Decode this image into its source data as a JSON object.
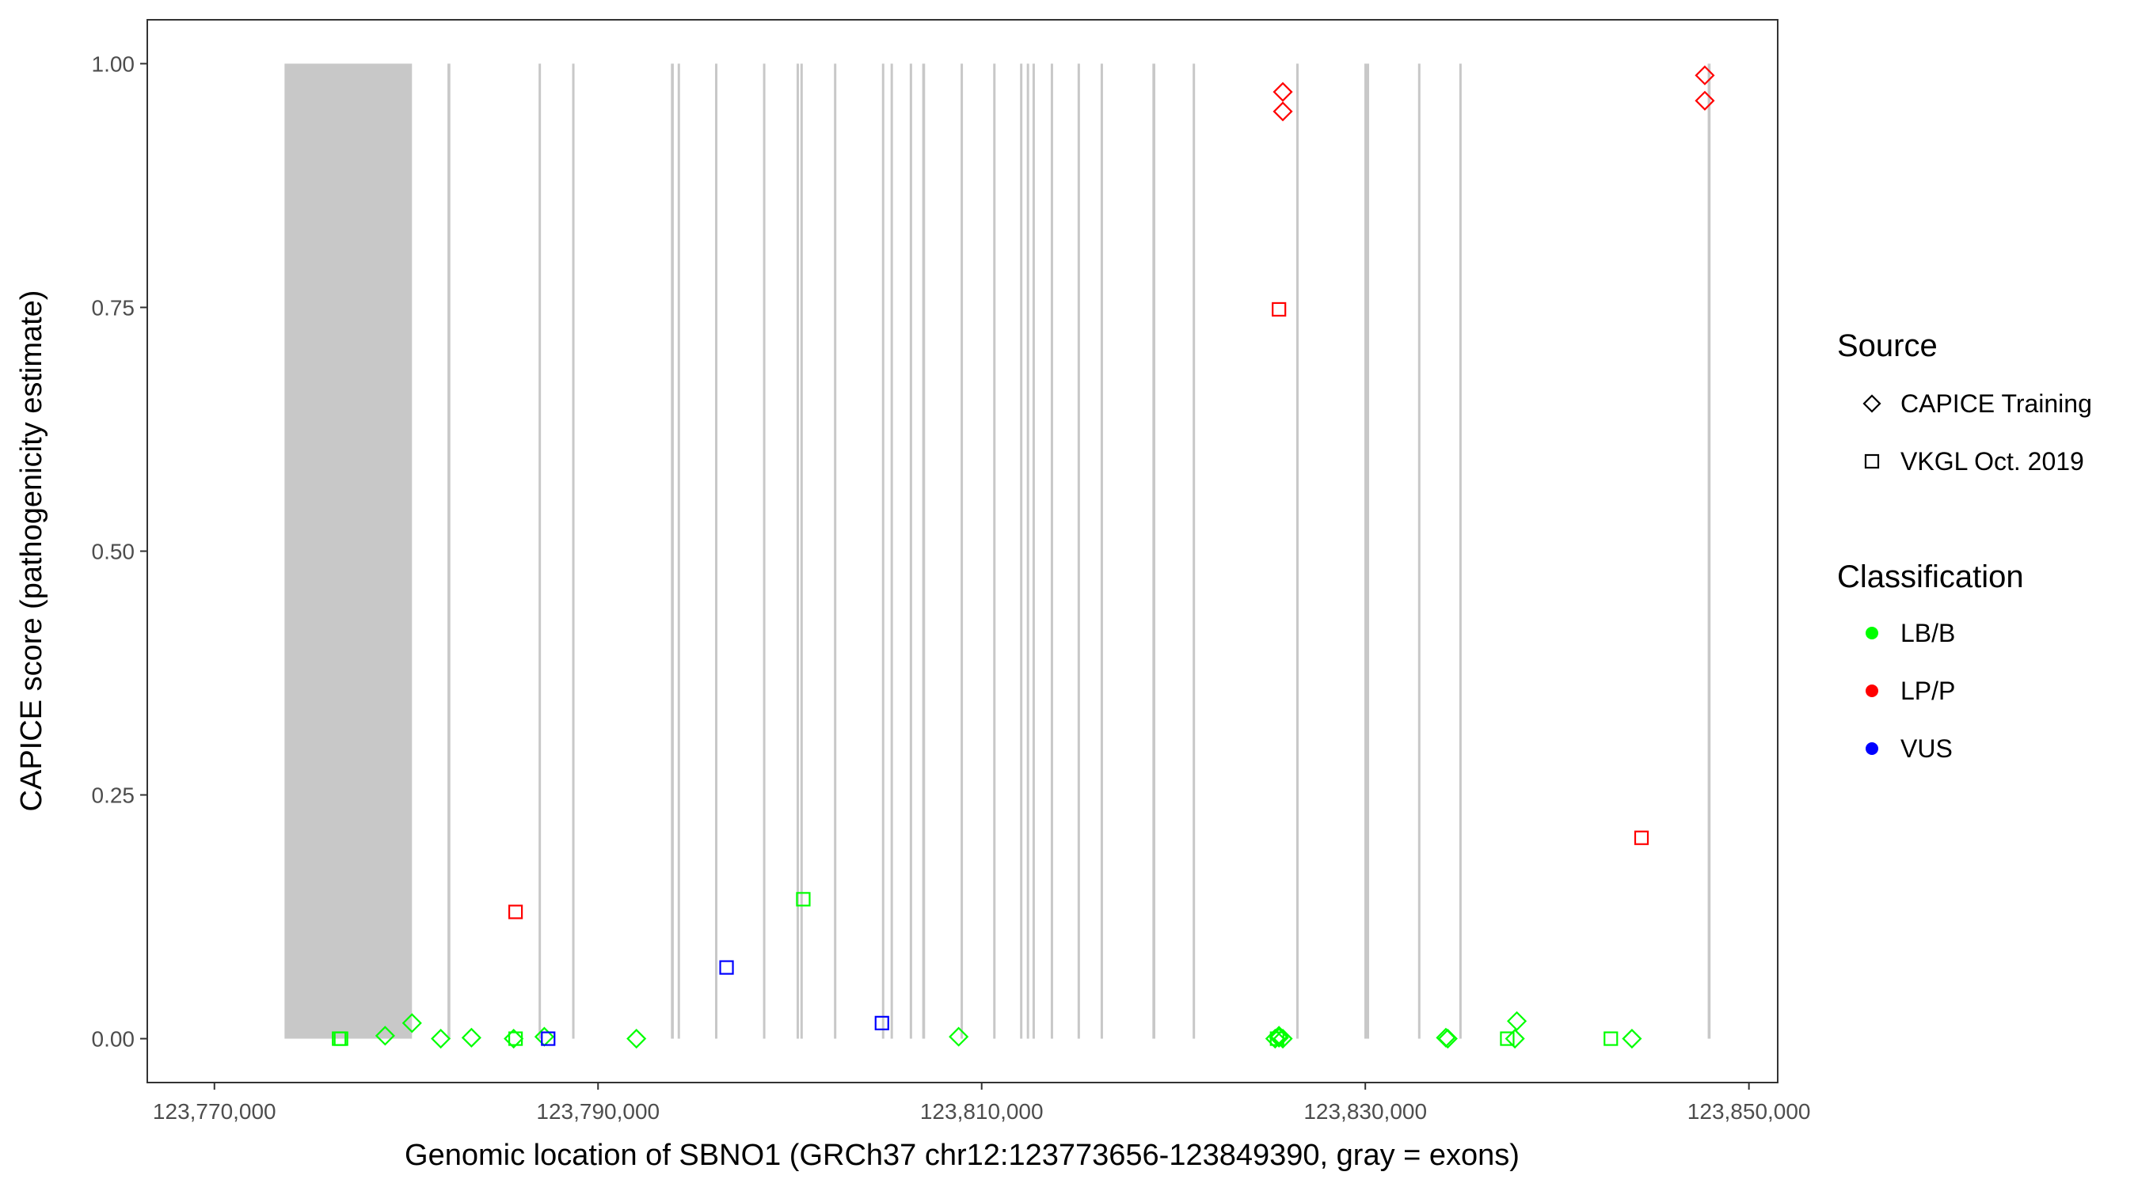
{
  "chart_data": {
    "type": "scatter",
    "xlabel": "Genomic location of SBNO1 (GRCh37 chr12:123773656-123849390, gray = exons)",
    "ylabel": "CAPICE score (pathogenicity estimate)",
    "xlim": [
      123766500,
      123851500
    ],
    "ylim": [
      -0.045,
      1.045
    ],
    "x_ticks": [
      123770000,
      123790000,
      123810000,
      123830000,
      123850000
    ],
    "x_tick_labels": [
      "123,770,000",
      "123,790,000",
      "123,810,000",
      "123,830,000",
      "123,850,000"
    ],
    "y_ticks": [
      0,
      0.25,
      0.5,
      0.75,
      1.0
    ],
    "y_tick_labels": [
      "0.00",
      "0.25",
      "0.50",
      "0.75",
      "1.00"
    ],
    "grid": false,
    "exons": [
      [
        123773656,
        123780300
      ],
      [
        123782150,
        123782300
      ],
      [
        123786900,
        123787000
      ],
      [
        123788650,
        123788750
      ],
      [
        123793800,
        123793950
      ],
      [
        123794150,
        123794250
      ],
      [
        123796100,
        123796150
      ],
      [
        123798600,
        123798700
      ],
      [
        123800350,
        123800400
      ],
      [
        123800550,
        123800600
      ],
      [
        123802300,
        123802400
      ],
      [
        123804800,
        123804900
      ],
      [
        123805250,
        123805350
      ],
      [
        123806250,
        123806350
      ],
      [
        123806900,
        123807050
      ],
      [
        123808900,
        123809000
      ],
      [
        123810600,
        123810700
      ],
      [
        123812000,
        123812100
      ],
      [
        123812350,
        123812450
      ],
      [
        123812650,
        123812750
      ],
      [
        123813600,
        123813700
      ],
      [
        123815000,
        123815100
      ],
      [
        123816200,
        123816300
      ],
      [
        123818900,
        123819050
      ],
      [
        123821000,
        123821100
      ],
      [
        123826400,
        123826450
      ],
      [
        123829950,
        123830200
      ],
      [
        123832750,
        123832850
      ],
      [
        123834900,
        123835000
      ],
      [
        123847850,
        123848000
      ]
    ],
    "series": [
      {
        "name": "LB/B",
        "source": "CAPICE Training",
        "color": "#00ff00",
        "shape": "diamond",
        "points": [
          [
            123778900,
            0.003
          ],
          [
            123780300,
            0.016
          ],
          [
            123781800,
            0.0
          ],
          [
            123783400,
            0.001
          ],
          [
            123785600,
            0.0
          ],
          [
            123787200,
            0.002
          ],
          [
            123792000,
            0.0
          ],
          [
            123808800,
            0.002
          ],
          [
            123825300,
            0.0
          ],
          [
            123825500,
            0.003
          ],
          [
            123825700,
            0.0
          ],
          [
            123825500,
            0.001
          ],
          [
            123834300,
            0.0
          ],
          [
            123834200,
            0.001
          ],
          [
            123837900,
            0.018
          ],
          [
            123837800,
            0.0
          ],
          [
            123843900,
            0.0
          ]
        ]
      },
      {
        "name": "LB/B",
        "source": "VKGL Oct. 2019",
        "color": "#00ff00",
        "shape": "square",
        "points": [
          [
            123776500,
            0.0
          ],
          [
            123776600,
            0.0
          ],
          [
            123785700,
            0.0
          ],
          [
            123800700,
            0.143
          ],
          [
            123825400,
            0.0
          ],
          [
            123837400,
            0.0
          ],
          [
            123842800,
            0.0
          ]
        ]
      },
      {
        "name": "LP/P",
        "source": "CAPICE Training",
        "color": "#ff0000",
        "shape": "diamond",
        "points": [
          [
            123825700,
            0.971
          ],
          [
            123825700,
            0.951
          ],
          [
            123847700,
            0.988
          ],
          [
            123847700,
            0.962
          ]
        ]
      },
      {
        "name": "LP/P",
        "source": "VKGL Oct. 2019",
        "color": "#ff0000",
        "shape": "square",
        "points": [
          [
            123785700,
            0.13
          ],
          [
            123825500,
            0.748
          ],
          [
            123844400,
            0.206
          ]
        ]
      },
      {
        "name": "VUS",
        "source": "VKGL Oct. 2019",
        "color": "#0000ff",
        "shape": "square",
        "points": [
          [
            123787400,
            0.0
          ],
          [
            123796700,
            0.073
          ],
          [
            123804800,
            0.016
          ]
        ]
      }
    ],
    "legend": {
      "placement": "right",
      "source_title": "Source",
      "source_items": [
        {
          "label": "CAPICE Training",
          "shape": "diamond"
        },
        {
          "label": "VKGL Oct. 2019",
          "shape": "square"
        }
      ],
      "class_title": "Classification",
      "class_items": [
        {
          "label": "LB/B",
          "color": "#00ff00"
        },
        {
          "label": "LP/P",
          "color": "#ff0000"
        },
        {
          "label": "VUS",
          "color": "#0000ff"
        }
      ]
    }
  }
}
